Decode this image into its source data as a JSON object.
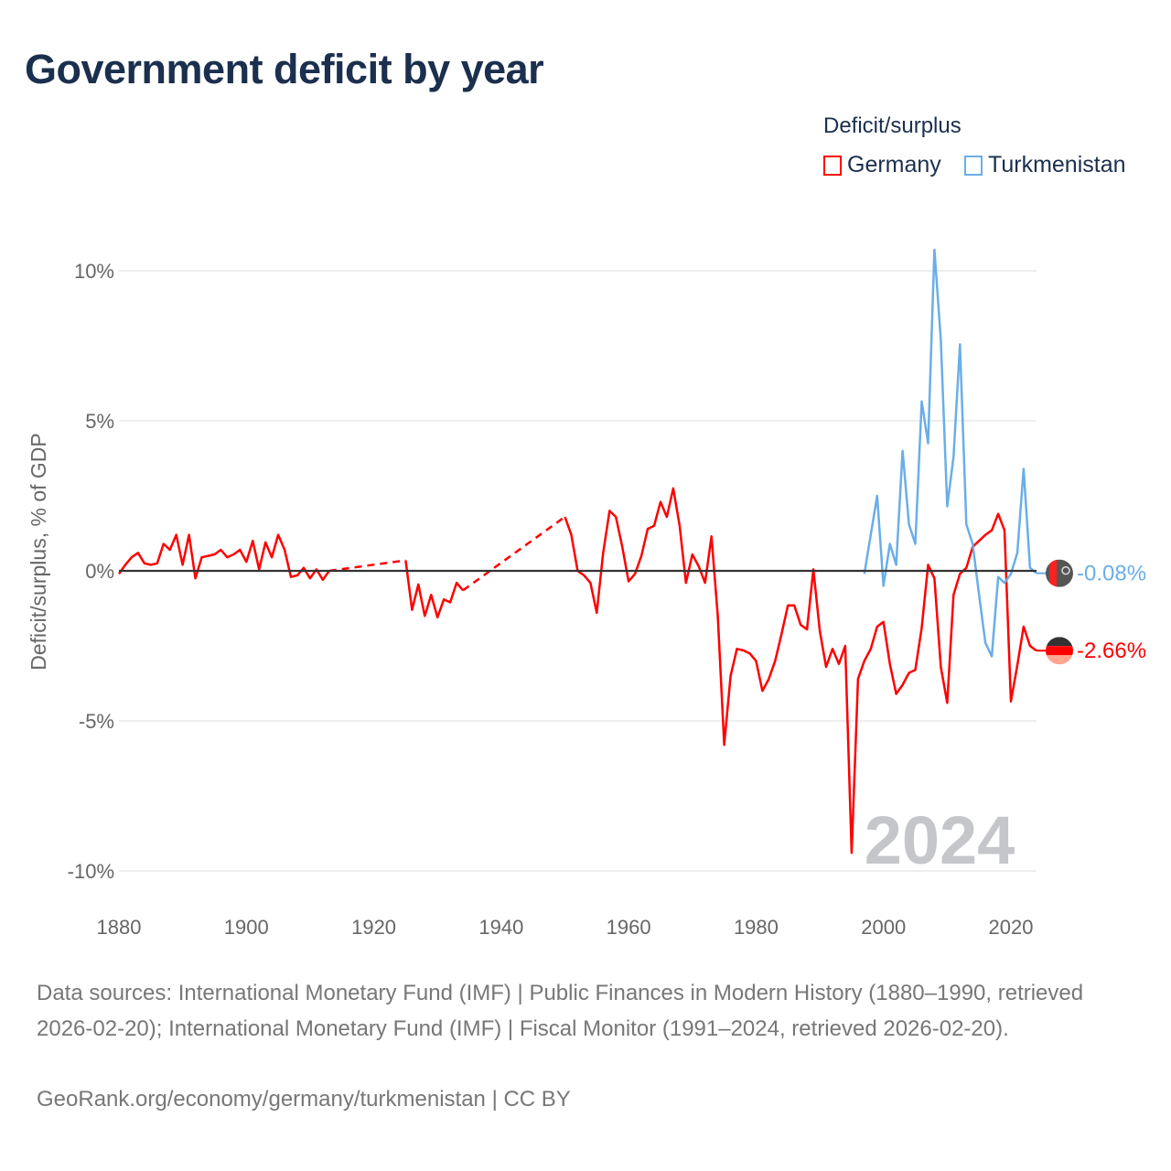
{
  "title": "Government deficit by year",
  "legend": {
    "title": "Deficit/surplus",
    "items": [
      {
        "label": "Germany",
        "color": "#ff0000"
      },
      {
        "label": "Turkmenistan",
        "color": "#6aaee8"
      }
    ]
  },
  "footer": {
    "sources": "Data sources: International Monetary Fund (IMF) | Public Finances in Modern History (1880–1990, retrieved 2026-02-20); International Monetary Fund (IMF) | Fiscal Monitor (1991–2024, retrieved 2026-02-20).",
    "link": "GeoRank.org/economy/germany/turkmenistan | CC BY"
  },
  "chart_data": {
    "type": "line",
    "title": "Government deficit by year",
    "xlabel": "",
    "ylabel": "Deficit/surplus, % of GDP",
    "xlim": [
      1880,
      2024
    ],
    "ylim": [
      -10,
      10
    ],
    "x_ticks": [
      1880,
      1900,
      1920,
      1940,
      1960,
      1980,
      2000,
      2020
    ],
    "x_tick_labels": [
      "1880",
      "1900",
      "1920",
      "1940",
      "1960",
      "1980",
      "2000",
      "2020"
    ],
    "y_ticks": [
      10,
      5,
      0,
      -5,
      -10
    ],
    "y_tick_labels": [
      "10%",
      "5%",
      "0%",
      "-5%",
      "-10%"
    ],
    "grid": true,
    "legend_position": "top-right",
    "year_annotation": "2024",
    "series": [
      {
        "name": "Germany",
        "color": "#ff0000",
        "end_label": "-2.66%",
        "x": [
          1880,
          1881,
          1882,
          1883,
          1884,
          1885,
          1886,
          1887,
          1888,
          1889,
          1890,
          1891,
          1892,
          1893,
          1894,
          1895,
          1896,
          1897,
          1898,
          1899,
          1900,
          1901,
          1902,
          1903,
          1904,
          1905,
          1906,
          1907,
          1908,
          1909,
          1910,
          1911,
          1912,
          1913,
          1925,
          1926,
          1927,
          1928,
          1929,
          1930,
          1931,
          1932,
          1933,
          1934,
          1950,
          1951,
          1952,
          1953,
          1954,
          1955,
          1956,
          1957,
          1958,
          1959,
          1960,
          1961,
          1962,
          1963,
          1964,
          1965,
          1966,
          1967,
          1968,
          1969,
          1970,
          1971,
          1972,
          1973,
          1974,
          1975,
          1976,
          1977,
          1978,
          1979,
          1980,
          1981,
          1982,
          1983,
          1984,
          1985,
          1986,
          1987,
          1988,
          1989,
          1990,
          1991,
          1992,
          1993,
          1994,
          1995,
          1996,
          1997,
          1998,
          1999,
          2000,
          2001,
          2002,
          2003,
          2004,
          2005,
          2006,
          2007,
          2008,
          2009,
          2010,
          2011,
          2012,
          2013,
          2014,
          2015,
          2016,
          2017,
          2018,
          2019,
          2020,
          2021,
          2022,
          2023,
          2024
        ],
        "y": [
          -0.1,
          0.2,
          0.45,
          0.6,
          0.25,
          0.2,
          0.25,
          0.9,
          0.7,
          1.2,
          0.2,
          1.2,
          -0.25,
          0.45,
          0.5,
          0.55,
          0.7,
          0.45,
          0.55,
          0.7,
          0.3,
          1.0,
          0.05,
          0.95,
          0.45,
          1.2,
          0.7,
          -0.2,
          -0.15,
          0.1,
          -0.25,
          0.05,
          -0.3,
          0.0,
          0.35,
          -1.3,
          -0.45,
          -1.5,
          -0.8,
          -1.55,
          -0.95,
          -1.05,
          -0.4,
          -0.65,
          1.8,
          1.2,
          0.0,
          -0.15,
          -0.4,
          -1.4,
          0.6,
          2.0,
          1.8,
          0.8,
          -0.35,
          -0.1,
          0.5,
          1.4,
          1.5,
          2.3,
          1.8,
          2.75,
          1.5,
          -0.4,
          0.55,
          0.15,
          -0.4,
          1.15,
          -1.5,
          -5.8,
          -3.5,
          -2.6,
          -2.65,
          -2.75,
          -3.0,
          -4.0,
          -3.6,
          -3.0,
          -2.1,
          -1.15,
          -1.15,
          -1.8,
          -1.95,
          0.05,
          -2.0,
          -3.2,
          -2.6,
          -3.1,
          -2.5,
          -9.4,
          -3.6,
          -3.0,
          -2.6,
          -1.86,
          -1.7,
          -3.1,
          -4.1,
          -3.8,
          -3.4,
          -3.3,
          -1.9,
          0.2,
          -0.25,
          -3.2,
          -4.4,
          -0.8,
          -0.1,
          0.1,
          0.8,
          1.0,
          1.2,
          1.35,
          1.9,
          1.35,
          -4.35,
          -3.15,
          -1.86,
          -2.5,
          -2.66
        ]
      },
      {
        "name": "Turkmenistan",
        "color": "#6aaee8",
        "end_label": "-0.08%",
        "x": [
          1997,
          1998,
          1999,
          2000,
          2001,
          2002,
          2003,
          2004,
          2005,
          2006,
          2007,
          2008,
          2009,
          2010,
          2011,
          2012,
          2013,
          2014,
          2015,
          2016,
          2017,
          2018,
          2019,
          2020,
          2021,
          2022,
          2023,
          2024
        ],
        "y": [
          -0.1,
          1.2,
          2.5,
          -0.5,
          0.9,
          0.2,
          4.0,
          1.55,
          0.9,
          5.65,
          4.25,
          10.7,
          7.7,
          2.15,
          3.8,
          7.55,
          1.55,
          0.9,
          -0.8,
          -2.4,
          -2.85,
          -0.2,
          -0.4,
          -0.1,
          0.6,
          3.4,
          0.1,
          -0.08
        ]
      }
    ]
  }
}
